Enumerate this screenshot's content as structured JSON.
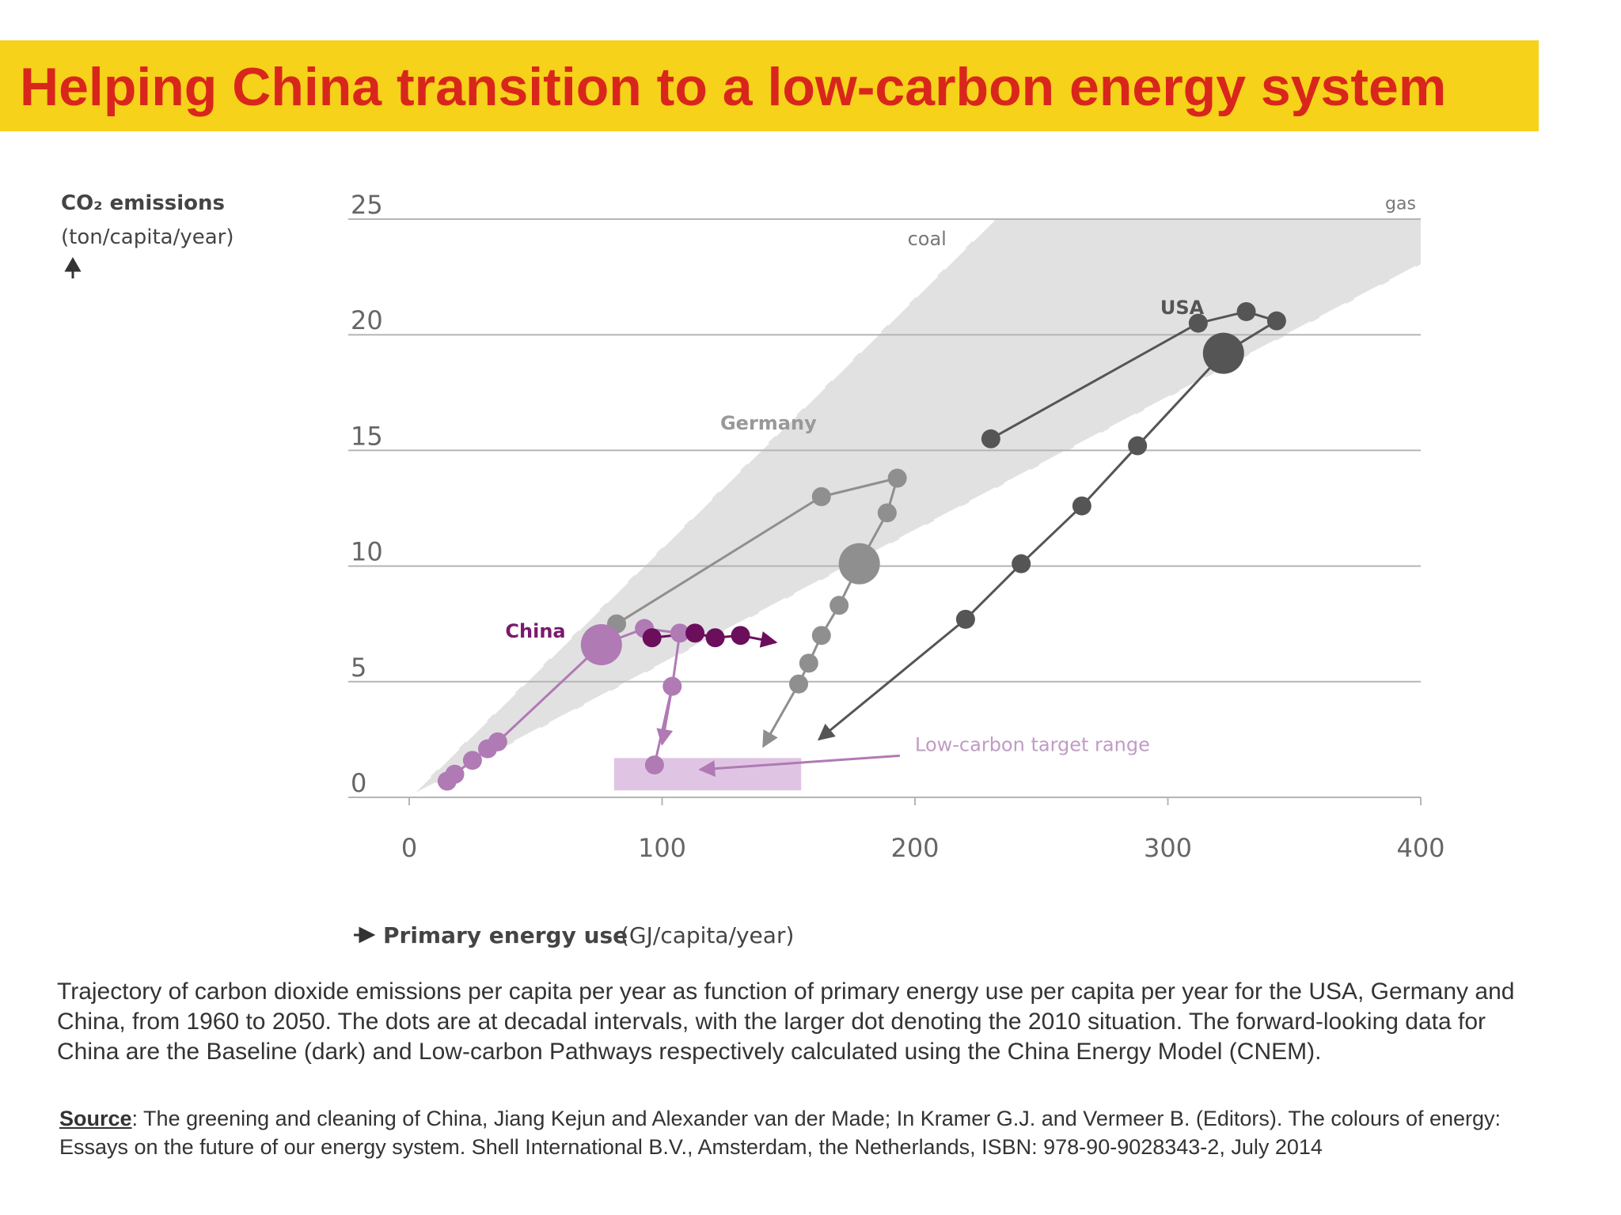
{
  "title": "Helping China transition to a low-carbon energy system",
  "caption": "Trajectory of carbon dioxide emissions per capita per year as function of primary energy use per capita per year for the USA, Germany and China, from 1960 to 2050. The dots are at decadal intervals, with the larger dot denoting the 2010 situation. The forward-looking data for China are the Baseline (dark) and Low-carbon Pathways respectively calculated using the China Energy Model (CNEM).",
  "source": {
    "label": "Source",
    "text": ": The greening and cleaning of China, Jiang Kejun and Alexander van der Made; In Kramer G.J. and Vermeer B. (Editors). The colours of energy: Essays on the future of our energy system. Shell International B.V., Amsterdam, the Netherlands, ISBN: 978-90-9028343-2, July 2014"
  },
  "chart_data": {
    "type": "scatter",
    "ylabel_main": "CO₂ emissions",
    "ylabel_unit": "(ton/capita/year)",
    "xlabel_main": "Primary energy use",
    "xlabel_unit": "(GJ/capita/year)",
    "xlim": [
      0,
      400
    ],
    "ylim": [
      0,
      25
    ],
    "x_ticks": [
      "0",
      "100",
      "200",
      "300",
      "400"
    ],
    "y_ticks": [
      "0",
      "5",
      "10",
      "15",
      "20",
      "25"
    ],
    "grid": "horizontal",
    "bands": [
      {
        "label": "coal",
        "slope": 0.108
      },
      {
        "label": "gas",
        "slope": 0.0576
      }
    ],
    "target_range": {
      "label": "Low-carbon target range",
      "x": [
        81,
        155
      ],
      "y": [
        0.3,
        1.7
      ]
    },
    "series": [
      {
        "name": "USA",
        "color": "#555555",
        "points": [
          {
            "x": 230,
            "y": 15.5
          },
          {
            "x": 312,
            "y": 20.5
          },
          {
            "x": 331,
            "y": 21
          },
          {
            "x": 343,
            "y": 20.6
          },
          {
            "x": 322,
            "y": 19.2,
            "big": true
          },
          {
            "x": 288,
            "y": 15.2
          },
          {
            "x": 266,
            "y": 12.6
          },
          {
            "x": 242,
            "y": 10.1
          },
          {
            "x": 220,
            "y": 7.7
          }
        ],
        "arrow_to": {
          "x": 162,
          "y": 2.5
        }
      },
      {
        "name": "Germany",
        "color": "#8f8f8f",
        "points": [
          {
            "x": 82,
            "y": 7.5
          },
          {
            "x": 163,
            "y": 13
          },
          {
            "x": 193,
            "y": 13.8
          },
          {
            "x": 189,
            "y": 12.3
          },
          {
            "x": 178,
            "y": 10.1,
            "big": true
          },
          {
            "x": 170,
            "y": 8.3
          },
          {
            "x": 163,
            "y": 7
          },
          {
            "x": 158,
            "y": 5.8
          },
          {
            "x": 154,
            "y": 4.9
          }
        ],
        "arrow_to": {
          "x": 140,
          "y": 2.2
        }
      },
      {
        "name": "China",
        "color": "#b07ab5",
        "points": [
          {
            "x": 15,
            "y": 0.7
          },
          {
            "x": 18,
            "y": 1
          },
          {
            "x": 25,
            "y": 1.6
          },
          {
            "x": 31,
            "y": 2.1
          },
          {
            "x": 35,
            "y": 2.4
          },
          {
            "x": 76,
            "y": 6.6,
            "big": true
          },
          {
            "x": 93,
            "y": 7.3
          },
          {
            "x": 107,
            "y": 7.1
          },
          {
            "x": 104,
            "y": 4.8
          },
          {
            "x": 97,
            "y": 1.4
          }
        ],
        "arrow_to": {
          "x": 100,
          "y": 2.3
        }
      },
      {
        "name": "China Baseline",
        "color": "#6b0f5c",
        "points": [
          {
            "x": 96,
            "y": 6.9
          },
          {
            "x": 113,
            "y": 7.1
          },
          {
            "x": 121,
            "y": 6.9
          },
          {
            "x": 131,
            "y": 7
          }
        ],
        "arrow_to": {
          "x": 145,
          "y": 6.7
        }
      }
    ],
    "series_labels": [
      "USA",
      "Germany",
      "China"
    ]
  }
}
